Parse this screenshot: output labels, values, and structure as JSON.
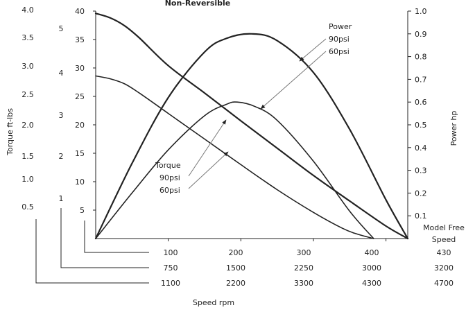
{
  "chart_data": {
    "type": "line",
    "title": "Non-Reversible",
    "left_axis_label": "Torque ft-lbs",
    "right_axis_label": "Power hp",
    "x_axis_label": "Speed rpm",
    "torque_scales": [
      {
        "ticks": [
          "0.5",
          "1.0",
          "1.5",
          "2.0",
          "2.5",
          "3.0",
          "3.5",
          "4.0"
        ],
        "values": [
          0.5,
          1.0,
          1.5,
          2.0,
          2.5,
          3.0,
          3.5,
          4.0
        ]
      },
      {
        "ticks": [
          "1",
          "2",
          "3",
          "4",
          "5"
        ],
        "values": [
          1,
          2,
          3,
          4,
          5
        ]
      },
      {
        "ticks": [
          "5",
          "10",
          "15",
          "20",
          "25",
          "30",
          "35",
          "40"
        ],
        "values": [
          5,
          10,
          15,
          20,
          25,
          30,
          35,
          40
        ]
      }
    ],
    "power_ticks": [
      "0.1",
      "0.2",
      "0.3",
      "0.4",
      "0.5",
      "0.6",
      "0.7",
      "0.8",
      "0.9",
      "1.0"
    ],
    "power_range": [
      0,
      1.0
    ],
    "speed_scale_header": "Model Free Speed",
    "speed_scales": [
      {
        "ticks": [
          "100",
          "200",
          "300",
          "400"
        ],
        "free_speed": "430"
      },
      {
        "ticks": [
          "750",
          "1500",
          "2250",
          "3000"
        ],
        "free_speed": "3200"
      },
      {
        "ticks": [
          "1100",
          "2200",
          "3300",
          "4300"
        ],
        "free_speed": "4700"
      }
    ],
    "x_range": [
      0,
      430
    ],
    "torque_range": [
      0,
      40
    ],
    "annotations": {
      "power": {
        "title": "Power",
        "items": [
          "90psi",
          "60psi"
        ]
      },
      "torque": {
        "title": "Torque",
        "items": [
          "90psi",
          "60psi"
        ]
      }
    },
    "series": [
      {
        "quantity": "torque",
        "pressure": "90psi",
        "x": [
          0,
          20,
          40,
          60,
          100,
          150,
          200,
          250,
          300,
          350,
          400,
          430
        ],
        "y": [
          39.6,
          38.8,
          37.4,
          35.3,
          30.4,
          25.6,
          20.7,
          15.9,
          11.1,
          6.6,
          2.2,
          0
        ]
      },
      {
        "quantity": "torque",
        "pressure": "60psi",
        "x": [
          0,
          20,
          40,
          60,
          100,
          150,
          200,
          250,
          300,
          340,
          360,
          383
        ],
        "y": [
          28.6,
          28.1,
          27.2,
          25.6,
          22.0,
          17.5,
          13.0,
          8.6,
          4.6,
          1.8,
          0.8,
          0
        ]
      },
      {
        "quantity": "power",
        "pressure": "90psi",
        "x": [
          0,
          50,
          100,
          150,
          180,
          215,
          250,
          300,
          350,
          400,
          430
        ],
        "y": [
          0,
          0.33,
          0.62,
          0.82,
          0.88,
          0.9,
          0.87,
          0.73,
          0.48,
          0.17,
          0
        ]
      },
      {
        "quantity": "power",
        "pressure": "60psi",
        "x": [
          0,
          50,
          100,
          150,
          180,
          195,
          220,
          250,
          300,
          350,
          383
        ],
        "y": [
          0,
          0.2,
          0.39,
          0.54,
          0.59,
          0.6,
          0.58,
          0.52,
          0.34,
          0.12,
          0
        ]
      }
    ]
  }
}
